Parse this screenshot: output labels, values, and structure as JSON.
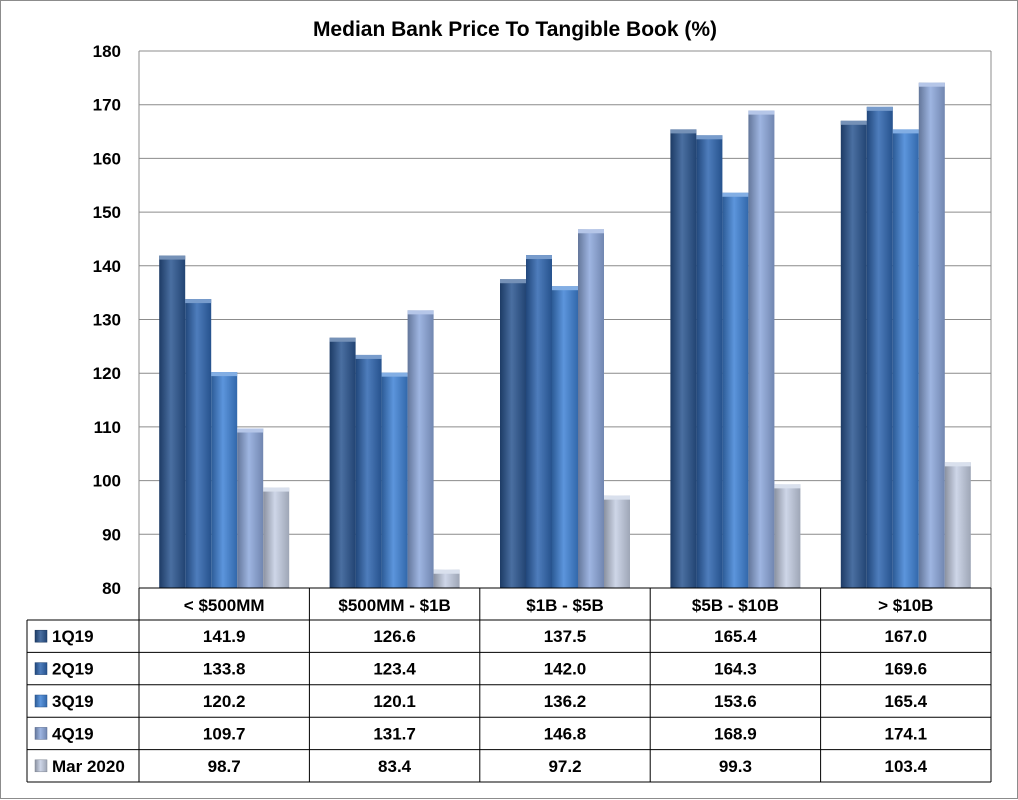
{
  "chart_data": {
    "type": "bar",
    "title": "Median Bank Price To Tangible Book (%)",
    "xlabel": "",
    "ylabel": "",
    "ylim": [
      80,
      180
    ],
    "yticks": [
      80,
      90,
      100,
      110,
      120,
      130,
      140,
      150,
      160,
      170,
      180
    ],
    "grid": true,
    "legend": "data-table-left",
    "categories": [
      "< $500MM",
      "$500MM - $1B",
      "$1B - $5B",
      "$5B - $10B",
      "> $10B"
    ],
    "series": [
      {
        "name": "1Q19",
        "values": [
          141.9,
          126.6,
          137.5,
          165.4,
          167.0
        ],
        "labels": [
          "141.9",
          "126.6",
          "137.5",
          "165.4",
          "167.0"
        ],
        "color": "#2a5590"
      },
      {
        "name": "2Q19",
        "values": [
          133.8,
          123.4,
          142.0,
          164.3,
          169.6
        ],
        "labels": [
          "133.8",
          "123.4",
          "142.0",
          "164.3",
          "169.6"
        ],
        "color": "#2f66b0"
      },
      {
        "name": "3Q19",
        "values": [
          120.2,
          120.1,
          136.2,
          153.6,
          165.4
        ],
        "labels": [
          "120.2",
          "120.1",
          "136.2",
          "153.6",
          "165.4"
        ],
        "color": "#3f82d6"
      },
      {
        "name": "4Q19",
        "values": [
          109.7,
          131.7,
          146.8,
          168.9,
          174.1
        ],
        "labels": [
          "109.7",
          "131.7",
          "146.8",
          "168.9",
          "174.1"
        ],
        "color": "#8da8dc"
      },
      {
        "name": "Mar 2020",
        "values": [
          98.7,
          83.4,
          97.2,
          99.3,
          103.4
        ],
        "labels": [
          "98.7",
          "83.4",
          "97.2",
          "99.3",
          "103.4"
        ],
        "color": "#c5cfe4"
      }
    ]
  }
}
